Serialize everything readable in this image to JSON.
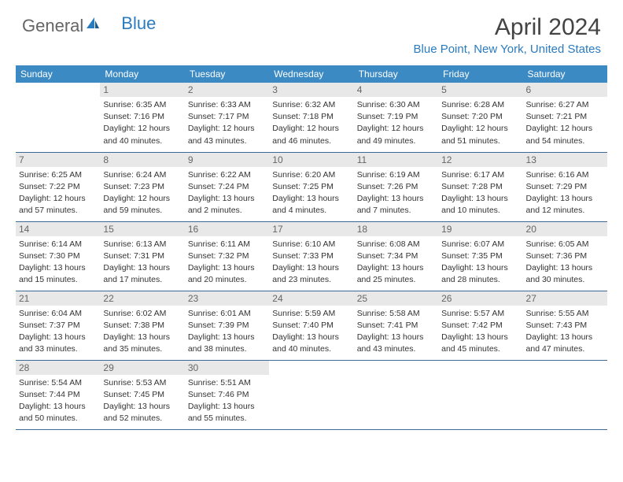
{
  "logo": {
    "text1": "General",
    "text2": "Blue"
  },
  "title": "April 2024",
  "location": "Blue Point, New York, United States",
  "calendar": {
    "header_bg": "#3b8ac4",
    "header_fg": "#ffffff",
    "daynum_bg": "#e8e8e8",
    "border_color": "#3b6a94",
    "days_of_week": [
      "Sunday",
      "Monday",
      "Tuesday",
      "Wednesday",
      "Thursday",
      "Friday",
      "Saturday"
    ],
    "weeks": [
      [
        null,
        {
          "n": "1",
          "sr": "Sunrise: 6:35 AM",
          "ss": "Sunset: 7:16 PM",
          "d1": "Daylight: 12 hours",
          "d2": "and 40 minutes."
        },
        {
          "n": "2",
          "sr": "Sunrise: 6:33 AM",
          "ss": "Sunset: 7:17 PM",
          "d1": "Daylight: 12 hours",
          "d2": "and 43 minutes."
        },
        {
          "n": "3",
          "sr": "Sunrise: 6:32 AM",
          "ss": "Sunset: 7:18 PM",
          "d1": "Daylight: 12 hours",
          "d2": "and 46 minutes."
        },
        {
          "n": "4",
          "sr": "Sunrise: 6:30 AM",
          "ss": "Sunset: 7:19 PM",
          "d1": "Daylight: 12 hours",
          "d2": "and 49 minutes."
        },
        {
          "n": "5",
          "sr": "Sunrise: 6:28 AM",
          "ss": "Sunset: 7:20 PM",
          "d1": "Daylight: 12 hours",
          "d2": "and 51 minutes."
        },
        {
          "n": "6",
          "sr": "Sunrise: 6:27 AM",
          "ss": "Sunset: 7:21 PM",
          "d1": "Daylight: 12 hours",
          "d2": "and 54 minutes."
        }
      ],
      [
        {
          "n": "7",
          "sr": "Sunrise: 6:25 AM",
          "ss": "Sunset: 7:22 PM",
          "d1": "Daylight: 12 hours",
          "d2": "and 57 minutes."
        },
        {
          "n": "8",
          "sr": "Sunrise: 6:24 AM",
          "ss": "Sunset: 7:23 PM",
          "d1": "Daylight: 12 hours",
          "d2": "and 59 minutes."
        },
        {
          "n": "9",
          "sr": "Sunrise: 6:22 AM",
          "ss": "Sunset: 7:24 PM",
          "d1": "Daylight: 13 hours",
          "d2": "and 2 minutes."
        },
        {
          "n": "10",
          "sr": "Sunrise: 6:20 AM",
          "ss": "Sunset: 7:25 PM",
          "d1": "Daylight: 13 hours",
          "d2": "and 4 minutes."
        },
        {
          "n": "11",
          "sr": "Sunrise: 6:19 AM",
          "ss": "Sunset: 7:26 PM",
          "d1": "Daylight: 13 hours",
          "d2": "and 7 minutes."
        },
        {
          "n": "12",
          "sr": "Sunrise: 6:17 AM",
          "ss": "Sunset: 7:28 PM",
          "d1": "Daylight: 13 hours",
          "d2": "and 10 minutes."
        },
        {
          "n": "13",
          "sr": "Sunrise: 6:16 AM",
          "ss": "Sunset: 7:29 PM",
          "d1": "Daylight: 13 hours",
          "d2": "and 12 minutes."
        }
      ],
      [
        {
          "n": "14",
          "sr": "Sunrise: 6:14 AM",
          "ss": "Sunset: 7:30 PM",
          "d1": "Daylight: 13 hours",
          "d2": "and 15 minutes."
        },
        {
          "n": "15",
          "sr": "Sunrise: 6:13 AM",
          "ss": "Sunset: 7:31 PM",
          "d1": "Daylight: 13 hours",
          "d2": "and 17 minutes."
        },
        {
          "n": "16",
          "sr": "Sunrise: 6:11 AM",
          "ss": "Sunset: 7:32 PM",
          "d1": "Daylight: 13 hours",
          "d2": "and 20 minutes."
        },
        {
          "n": "17",
          "sr": "Sunrise: 6:10 AM",
          "ss": "Sunset: 7:33 PM",
          "d1": "Daylight: 13 hours",
          "d2": "and 23 minutes."
        },
        {
          "n": "18",
          "sr": "Sunrise: 6:08 AM",
          "ss": "Sunset: 7:34 PM",
          "d1": "Daylight: 13 hours",
          "d2": "and 25 minutes."
        },
        {
          "n": "19",
          "sr": "Sunrise: 6:07 AM",
          "ss": "Sunset: 7:35 PM",
          "d1": "Daylight: 13 hours",
          "d2": "and 28 minutes."
        },
        {
          "n": "20",
          "sr": "Sunrise: 6:05 AM",
          "ss": "Sunset: 7:36 PM",
          "d1": "Daylight: 13 hours",
          "d2": "and 30 minutes."
        }
      ],
      [
        {
          "n": "21",
          "sr": "Sunrise: 6:04 AM",
          "ss": "Sunset: 7:37 PM",
          "d1": "Daylight: 13 hours",
          "d2": "and 33 minutes."
        },
        {
          "n": "22",
          "sr": "Sunrise: 6:02 AM",
          "ss": "Sunset: 7:38 PM",
          "d1": "Daylight: 13 hours",
          "d2": "and 35 minutes."
        },
        {
          "n": "23",
          "sr": "Sunrise: 6:01 AM",
          "ss": "Sunset: 7:39 PM",
          "d1": "Daylight: 13 hours",
          "d2": "and 38 minutes."
        },
        {
          "n": "24",
          "sr": "Sunrise: 5:59 AM",
          "ss": "Sunset: 7:40 PM",
          "d1": "Daylight: 13 hours",
          "d2": "and 40 minutes."
        },
        {
          "n": "25",
          "sr": "Sunrise: 5:58 AM",
          "ss": "Sunset: 7:41 PM",
          "d1": "Daylight: 13 hours",
          "d2": "and 43 minutes."
        },
        {
          "n": "26",
          "sr": "Sunrise: 5:57 AM",
          "ss": "Sunset: 7:42 PM",
          "d1": "Daylight: 13 hours",
          "d2": "and 45 minutes."
        },
        {
          "n": "27",
          "sr": "Sunrise: 5:55 AM",
          "ss": "Sunset: 7:43 PM",
          "d1": "Daylight: 13 hours",
          "d2": "and 47 minutes."
        }
      ],
      [
        {
          "n": "28",
          "sr": "Sunrise: 5:54 AM",
          "ss": "Sunset: 7:44 PM",
          "d1": "Daylight: 13 hours",
          "d2": "and 50 minutes."
        },
        {
          "n": "29",
          "sr": "Sunrise: 5:53 AM",
          "ss": "Sunset: 7:45 PM",
          "d1": "Daylight: 13 hours",
          "d2": "and 52 minutes."
        },
        {
          "n": "30",
          "sr": "Sunrise: 5:51 AM",
          "ss": "Sunset: 7:46 PM",
          "d1": "Daylight: 13 hours",
          "d2": "and 55 minutes."
        },
        null,
        null,
        null,
        null
      ]
    ]
  }
}
